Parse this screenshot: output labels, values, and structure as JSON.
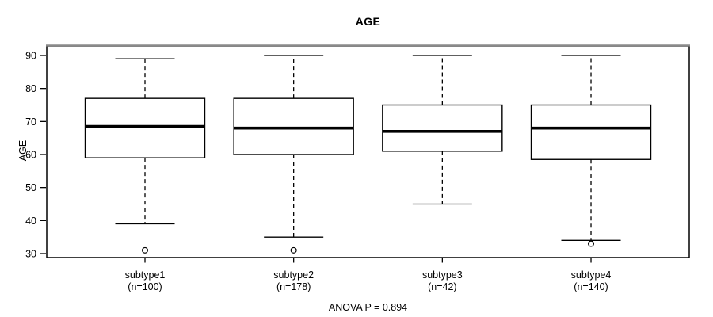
{
  "chart": {
    "title": "AGE",
    "ylabel": "AGE",
    "footnote": "ANOVA P = 0.894"
  },
  "chart_data": {
    "type": "boxplot",
    "title": "AGE",
    "xlabel": "",
    "ylabel": "AGE",
    "ylim": [
      30,
      90
    ],
    "yticks": [
      30,
      40,
      50,
      60,
      70,
      80,
      90
    ],
    "grid": false,
    "legend": "none",
    "footnote": "ANOVA P = 0.894",
    "groups": [
      {
        "label": "subtype1",
        "n_label": "(n=100)",
        "n": 100,
        "whisker_low": 39,
        "q1": 59,
        "median": 68.5,
        "q3": 77,
        "whisker_high": 89,
        "outliers": [
          31
        ]
      },
      {
        "label": "subtype2",
        "n_label": "(n=178)",
        "n": 178,
        "whisker_low": 35,
        "q1": 60,
        "median": 68,
        "q3": 77,
        "whisker_high": 90,
        "outliers": [
          31
        ]
      },
      {
        "label": "subtype3",
        "n_label": "(n=42)",
        "n": 42,
        "whisker_low": 45,
        "q1": 61,
        "median": 67,
        "q3": 75,
        "whisker_high": 90,
        "outliers": []
      },
      {
        "label": "subtype4",
        "n_label": "(n=140)",
        "n": 140,
        "whisker_low": 34,
        "q1": 58.5,
        "median": 68,
        "q3": 75,
        "whisker_high": 90,
        "outliers": [
          33
        ]
      }
    ],
    "colors": {
      "line": "#000000",
      "box_fill": "#ffffff",
      "median": "#000000",
      "border_top": "#8a8a8a",
      "background": "#ffffff",
      "text": "#000000"
    }
  }
}
